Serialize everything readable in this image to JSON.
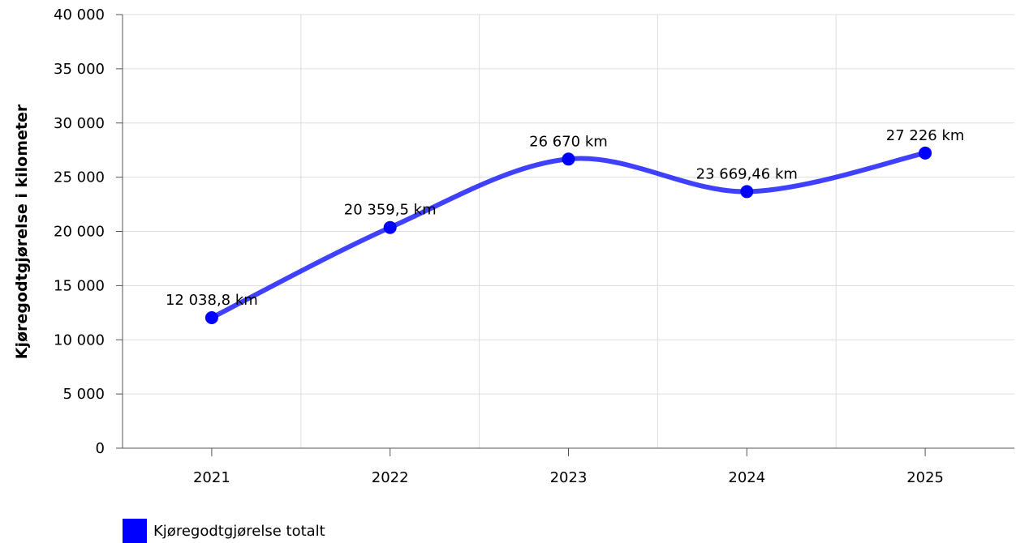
{
  "chart_data": {
    "type": "line",
    "ylabel": "Kjøregodtgjørelse i kilometer",
    "xlabel": "",
    "categories": [
      "2021",
      "2022",
      "2023",
      "2024",
      "2025"
    ],
    "ylim": [
      0,
      40000
    ],
    "yticks": [
      0,
      5000,
      10000,
      15000,
      20000,
      25000,
      30000,
      35000,
      40000
    ],
    "ytick_labels": [
      "0",
      "5 000",
      "10 000",
      "15 000",
      "20 000",
      "25 000",
      "30 000",
      "35 000",
      "40 000"
    ],
    "grid": true,
    "smooth": true,
    "legend_position": "bottom-left",
    "series": [
      {
        "name": "Kjøregodtgjørelse totalt",
        "color": "#0000ff",
        "values": [
          12038.8,
          20359.5,
          26670,
          23669.46,
          27226
        ],
        "labels": [
          "12 038,8 km",
          "20 359,5 km",
          "26 670 km",
          "23 669,46 km",
          "27 226 km"
        ]
      }
    ]
  }
}
